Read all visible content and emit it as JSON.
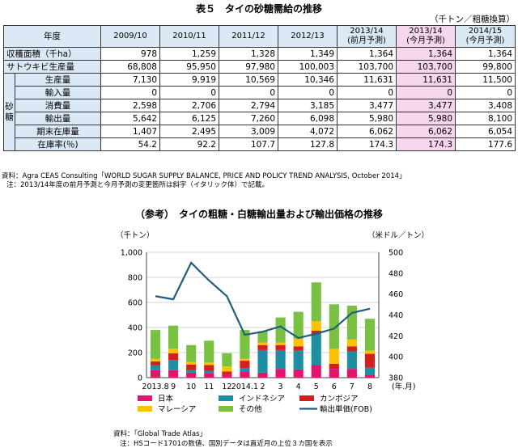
{
  "title": "表５　タイの砂糖需給の推移",
  "unit_note": "（千トン／粗糖換算）",
  "table": {
    "year_header": "年度",
    "columns": [
      {
        "l1": "2009/10",
        "l2": "",
        "pink": false
      },
      {
        "l1": "2010/11",
        "l2": "",
        "pink": false
      },
      {
        "l1": "2011/12",
        "l2": "",
        "pink": false
      },
      {
        "l1": "2012/13",
        "l2": "",
        "pink": false
      },
      {
        "l1": "2013/14",
        "l2": "(前月予測)",
        "pink": false
      },
      {
        "l1": "2013/14",
        "l2": "(今月予測)",
        "pink": true
      },
      {
        "l1": "2014/15",
        "l2": "(今月予測)",
        "pink": false
      }
    ],
    "side_label": "砂糖",
    "rows": [
      {
        "label": "収穫面積（千ha）",
        "sub": false,
        "values": [
          "978",
          "1,259",
          "1,328",
          "1,349",
          "1,364",
          "1,364",
          "1,364"
        ]
      },
      {
        "label": "サトウキビ生産量",
        "sub": false,
        "values": [
          "68,808",
          "95,950",
          "97,980",
          "100,003",
          "103,700",
          "103,700",
          "99,800"
        ]
      },
      {
        "label": "生産量",
        "sub": true,
        "values": [
          "7,130",
          "9,919",
          "10,569",
          "10,346",
          "11,631",
          "11,631",
          "11,500"
        ]
      },
      {
        "label": "輸入量",
        "sub": true,
        "values": [
          "0",
          "0",
          "0",
          "0",
          "0",
          "0",
          "0"
        ]
      },
      {
        "label": "消費量",
        "sub": true,
        "values": [
          "2,598",
          "2,706",
          "2,794",
          "3,185",
          "3,477",
          "3,477",
          "3,408"
        ]
      },
      {
        "label": "輸出量",
        "sub": true,
        "values": [
          "5,642",
          "6,125",
          "7,260",
          "6,098",
          "5,980",
          "5,980",
          "8,100"
        ]
      },
      {
        "label": "期末在庫量",
        "sub": true,
        "values": [
          "1,407",
          "2,495",
          "3,009",
          "4,072",
          "6,062",
          "6,062",
          "6,054"
        ]
      },
      {
        "label": "在庫率(％)",
        "sub": true,
        "values": [
          "54.2",
          "92.2",
          "107.7",
          "127.8",
          "174.3",
          "174.3",
          "177.6"
        ]
      }
    ]
  },
  "notes": {
    "source": "資料：Agra CEAS Consulting「WORLD SUGAR SUPPLY BALANCE, PRICE AND POLICY TREND ANALYSIS, October 2014」",
    "note": "注：2013/14年度の前月予測と今月予測の変更箇所は斜字（イタリック体）で記載。"
  },
  "chart_title": "（参考）　タイの粗糖・白糖輸出量および輸出価格の推移",
  "chart_source": "資料：「Global Trade Atlas」",
  "chart_note": "注：HSコード1701の数値、国別データは直近月の上位３カ国を表示",
  "chart_data": {
    "type": "bar",
    "stacked": true,
    "left_axis_label": "（千トン）",
    "right_axis_label": "（米ドル／トン）",
    "x_unit_label": "(年.月)",
    "categories": [
      "2013.8",
      "9",
      "10",
      "11",
      "12",
      "2014.1",
      "2",
      "3",
      "4",
      "5",
      "6",
      "7",
      "8"
    ],
    "left_ticks": [
      "0",
      "200",
      "400",
      "600",
      "800",
      "1,000"
    ],
    "right_ticks": [
      "380",
      "400",
      "420",
      "440",
      "460",
      "480",
      "500"
    ],
    "ylim_left": [
      0,
      1000
    ],
    "ylim_right": [
      380,
      500
    ],
    "series": [
      {
        "name": "日本",
        "color": "#e0156e",
        "values": [
          60,
          60,
          40,
          35,
          20,
          45,
          40,
          70,
          65,
          100,
          70,
          70,
          25
        ]
      },
      {
        "name": "インドネシア",
        "color": "#1e8fa3",
        "values": [
          40,
          80,
          20,
          20,
          0,
          30,
          180,
          150,
          150,
          250,
          0,
          140,
          55
        ]
      },
      {
        "name": "カンボジア",
        "color": "#d21f1f",
        "values": [
          30,
          55,
          45,
          45,
          30,
          60,
          40,
          40,
          35,
          25,
          40,
          40,
          110
        ]
      },
      {
        "name": "マレーシア",
        "color": "#ffc000",
        "values": [
          20,
          35,
          20,
          20,
          40,
          15,
          20,
          20,
          60,
          75,
          120,
          55,
          25
        ]
      },
      {
        "name": "その他",
        "color": "#7ac143",
        "values": [
          230,
          185,
          135,
          175,
          105,
          230,
          90,
          200,
          215,
          310,
          355,
          270,
          255
        ]
      }
    ],
    "line": {
      "name": "輸出単価(FOB)",
      "color": "#1f5f7a",
      "axis": "right",
      "values": [
        458,
        455,
        490,
        473,
        458,
        421,
        424,
        429,
        418,
        422,
        427,
        442,
        446
      ]
    }
  }
}
